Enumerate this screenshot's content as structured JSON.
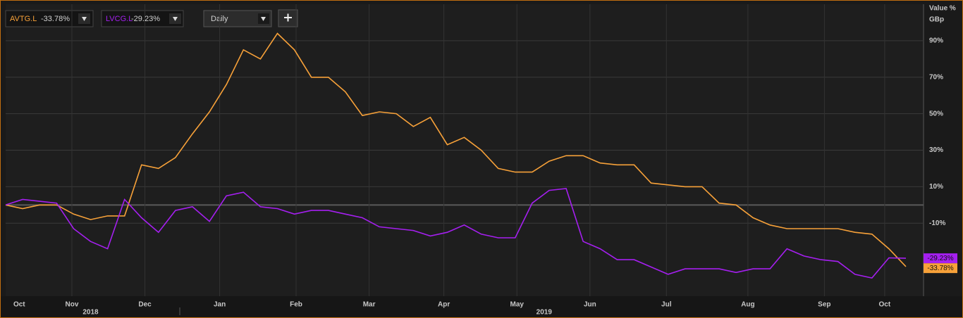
{
  "chart_data": {
    "type": "line",
    "y_axis_title": "Value %",
    "y_axis_unit": "GBp",
    "interval": "Daily",
    "xlim": [
      0,
      53
    ],
    "xticks": [
      {
        "value": 0.8,
        "label": "Oct"
      },
      {
        "value": 3.9,
        "label": "Nov"
      },
      {
        "value": 8.2,
        "label": "Dec"
      },
      {
        "value": 12.6,
        "label": "Jan"
      },
      {
        "value": 17.1,
        "label": "Feb"
      },
      {
        "value": 21.4,
        "label": "Mar"
      },
      {
        "value": 25.8,
        "label": "Apr"
      },
      {
        "value": 30.1,
        "label": "May"
      },
      {
        "value": 34.4,
        "label": "Jun"
      },
      {
        "value": 38.9,
        "label": "Jul"
      },
      {
        "value": 43.7,
        "label": "Aug"
      },
      {
        "value": 48.2,
        "label": "Sep"
      },
      {
        "value": 51.75,
        "label": "Oct"
      }
    ],
    "year_labels": [
      {
        "value": 5,
        "label": "2018"
      },
      {
        "value": 31.7,
        "label": "2019"
      }
    ],
    "ylim": [
      -50,
      110
    ],
    "yticks": [
      {
        "value": 90,
        "label": "90%"
      },
      {
        "value": 70,
        "label": "70%"
      },
      {
        "value": 50,
        "label": "50%"
      },
      {
        "value": 30,
        "label": "30%"
      },
      {
        "value": 10,
        "label": "10%"
      },
      {
        "value": -10,
        "label": "-10%"
      }
    ],
    "grid": true,
    "series": [
      {
        "name": "AVTG.L",
        "color": "#f7a139",
        "last_label": "-33.78%",
        "values": [
          0,
          -2,
          0,
          0,
          -5,
          -8,
          -6,
          -6,
          22,
          20,
          26,
          39,
          51,
          66,
          85,
          80,
          94,
          85,
          70,
          70,
          62,
          49,
          51,
          50,
          43,
          48,
          33,
          37,
          30,
          20,
          18,
          18,
          24,
          27,
          27,
          23,
          22,
          22,
          12,
          11,
          10,
          10,
          1,
          0,
          -7,
          -11,
          -13,
          -13,
          -13,
          -13,
          -15,
          -16,
          -24,
          -33.78
        ]
      },
      {
        "name": "LVCG.L",
        "color": "#a51ff0",
        "last_label": "-29.23%",
        "values": [
          0,
          3,
          2,
          1,
          -13,
          -20,
          -24,
          3,
          -7,
          -15,
          -3,
          -1,
          -9,
          5,
          7,
          -1,
          -2,
          -5,
          -3,
          -3,
          -5,
          -7,
          -12,
          -13,
          -14,
          -17,
          -15,
          -11,
          -16,
          -18,
          -18,
          1,
          8,
          9,
          -20,
          -24,
          -30,
          -30,
          -34,
          -38,
          -35,
          -35,
          -35,
          -37,
          -35,
          -35,
          -24,
          -28,
          -30,
          -31,
          -38,
          -40,
          -29,
          -29.23
        ]
      }
    ]
  }
}
